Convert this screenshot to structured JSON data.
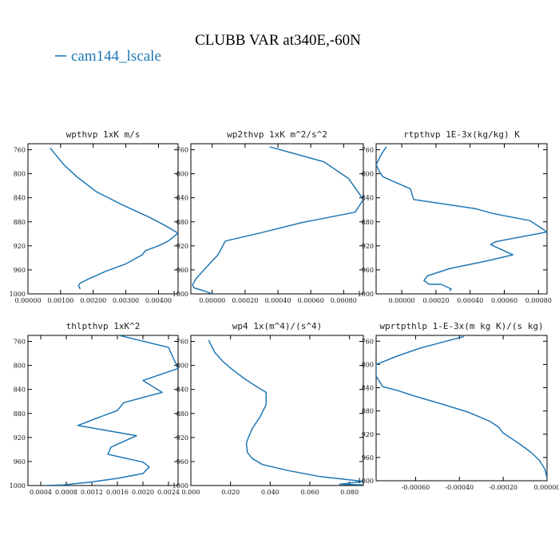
{
  "figure": {
    "title": "CLUBB VAR at340E,-60N",
    "legend": [
      {
        "name": "cam144_lscale",
        "color": "#1f77b4"
      }
    ],
    "series_color": "#1f77b4"
  },
  "chart_data": [
    {
      "type": "line",
      "title": "wpthvp  1xK m/s",
      "xlim": [
        0,
        0.0046
      ],
      "ylim": [
        1000,
        750
      ],
      "xticks": [
        "0.00000",
        "0.00100",
        "0.00200",
        "0.00300",
        "0.00400"
      ],
      "xtick_values": [
        0,
        0.001,
        0.002,
        0.003,
        0.004
      ],
      "yticks": [
        "760",
        "800",
        "840",
        "880",
        "920",
        "960",
        "1000"
      ],
      "ytick_values": [
        760,
        800,
        840,
        880,
        920,
        960,
        1000
      ],
      "series": [
        {
          "x": [
            0.00068,
            0.0008,
            0.0011,
            0.0015,
            0.0021,
            0.0029,
            0.0037,
            0.0042,
            0.0046,
            0.0043,
            0.004,
            0.0036,
            0.0035,
            0.003,
            0.0024,
            0.0019,
            0.0016,
            0.00155,
            0.0016
          ],
          "y": [
            757,
            765,
            785,
            805,
            830,
            852,
            872,
            886,
            899,
            912,
            920,
            928,
            935,
            950,
            962,
            974,
            982,
            986,
            992
          ]
        }
      ]
    },
    {
      "type": "line",
      "title": "wp2thvp  1xK m^2/s^2",
      "xlim": [
        -0.00013,
        0.00092
      ],
      "ylim": [
        1000,
        750
      ],
      "xticks": [
        "0.00000",
        "0.00020",
        "0.00040",
        "0.00060",
        "0.00080"
      ],
      "xtick_values": [
        0,
        0.0002,
        0.0004,
        0.0006,
        0.0008
      ],
      "yticks": [
        "760",
        "800",
        "840",
        "880",
        "920",
        "960",
        "1000"
      ],
      "ytick_values": [
        760,
        800,
        840,
        880,
        920,
        960,
        1000
      ],
      "series": [
        {
          "x": [
            0.00035,
            0.00052,
            0.00068,
            0.00083,
            0.00092,
            0.00087,
            0.00055,
            0.0003,
            8e-05,
            3.5e-05,
            -5e-05,
            -0.0001,
            -0.00012,
            -0.00011,
            -5e-05,
            0.0
          ],
          "y": [
            755,
            768,
            780,
            808,
            843,
            864,
            881,
            898,
            912,
            935,
            960,
            975,
            985,
            990,
            995,
            1000
          ]
        }
      ]
    },
    {
      "type": "line",
      "title": "rtpthvp  1E-3x(kg/kg) K",
      "xlim": [
        -0.00015,
        0.00085
      ],
      "ylim": [
        1000,
        750
      ],
      "xticks": [
        "0.00000",
        "0.00020",
        "0.00040",
        "0.00060",
        "0.00080"
      ],
      "xtick_values": [
        0,
        0.0002,
        0.0004,
        0.0006,
        0.0008
      ],
      "yticks": [
        "760",
        "800",
        "840",
        "880",
        "920",
        "960",
        "1000"
      ],
      "ytick_values": [
        760,
        800,
        840,
        880,
        920,
        960,
        1000
      ],
      "series": [
        {
          "x": [
            -9e-05,
            -0.00012,
            -0.00015,
            -0.00013,
            -0.00011,
            5e-05,
            7e-05,
            0.00043,
            0.00053,
            0.00075,
            0.00085,
            0.00055,
            0.00052,
            0.00065,
            0.0005,
            0.00028,
            0.00015,
            0.00013,
            0.00016,
            0.00023,
            0.00029,
            0.00028
          ],
          "y": [
            755,
            768,
            785,
            797,
            805,
            825,
            843,
            858,
            866,
            878,
            897,
            913,
            918,
            935,
            945,
            958,
            970,
            978,
            984,
            984,
            992,
            995
          ]
        }
      ]
    },
    {
      "type": "line",
      "title": "thlpthvp  1xK^2",
      "xlim": [
        0.0002,
        0.00255
      ],
      "ylim": [
        1000,
        750
      ],
      "xticks": [
        "0.0004",
        "0.0008",
        "0.0012",
        "0.0016",
        "0.0020",
        "0.0024"
      ],
      "xtick_values": [
        0.0004,
        0.0008,
        0.0012,
        0.0016,
        0.002,
        0.0024
      ],
      "yticks": [
        "760",
        "800",
        "840",
        "880",
        "920",
        "960",
        "1000"
      ],
      "ytick_values": [
        760,
        800,
        840,
        880,
        920,
        960,
        1000
      ],
      "series": [
        {
          "x": [
            0.00155,
            0.0019,
            0.0024,
            0.00255,
            0.002,
            0.0023,
            0.0017,
            0.0016,
            0.0013,
            0.00098,
            0.0019,
            0.0015,
            0.00145,
            0.002,
            0.0021,
            0.002,
            0.0016,
            0.0012,
            0.00075,
            0.00045
          ],
          "y": [
            748,
            757,
            770,
            805,
            825,
            845,
            862,
            875,
            887,
            900,
            917,
            936,
            948,
            961,
            969,
            980,
            988,
            994,
            999,
            1000
          ]
        }
      ]
    },
    {
      "type": "line",
      "title": "wp4  1x(m^4)/(s^4)",
      "xlim": [
        0.0,
        0.087
      ],
      "ylim": [
        1000,
        750
      ],
      "xticks": [
        "0.000",
        "0.020",
        "0.040",
        "0.060",
        "0.080"
      ],
      "xtick_values": [
        0,
        0.02,
        0.04,
        0.06,
        0.08
      ],
      "yticks": [
        "760",
        "800",
        "840",
        "880",
        "920",
        "960",
        "1000"
      ],
      "ytick_values": [
        760,
        800,
        840,
        880,
        920,
        960,
        1000
      ],
      "series": [
        {
          "x": [
            0.009,
            0.0105,
            0.012,
            0.016,
            0.021,
            0.027,
            0.033,
            0.038,
            0.038,
            0.035,
            0.031,
            0.029,
            0.028,
            0.0285,
            0.031,
            0.036,
            0.049,
            0.065,
            0.087,
            0.075,
            0.088
          ],
          "y": [
            758,
            768,
            778,
            793,
            807,
            822,
            835,
            845,
            865,
            885,
            905,
            920,
            930,
            945,
            955,
            965,
            975,
            985,
            993,
            998,
            999
          ]
        }
      ]
    },
    {
      "type": "line",
      "title": "wprtpthlp  1-E-3x(m kg K)/(s kg)",
      "xlim": [
        -0.00078,
        0.0
      ],
      "ylim": [
        1000,
        750
      ],
      "xticks": [
        "-0.00060",
        "-0.00040",
        "-0.00020",
        "0.00000"
      ],
      "xtick_values": [
        -0.0006,
        -0.0004,
        -0.0002,
        0
      ],
      "yticks": [
        "760",
        "800",
        "840",
        "880",
        "920",
        "960",
        "1000"
      ],
      "ytick_values": [
        760,
        800,
        840,
        880,
        920,
        960,
        1000
      ],
      "series": [
        {
          "x": [
            -0.00038,
            -0.00048,
            -0.00058,
            -0.00068,
            -0.00078,
            -0.00078,
            -0.00075,
            -0.00068,
            -0.0006,
            -0.00048,
            -0.00036,
            -0.00026,
            -0.00022,
            -0.0002,
            -0.00018,
            -0.00012,
            -7e-05,
            -3.5e-05,
            -1e-05,
            0.0
          ],
          "y": [
            752,
            762,
            772,
            785,
            800,
            820,
            838,
            845,
            855,
            868,
            882,
            898,
            908,
            918,
            923,
            938,
            952,
            965,
            980,
            995
          ]
        }
      ]
    }
  ]
}
